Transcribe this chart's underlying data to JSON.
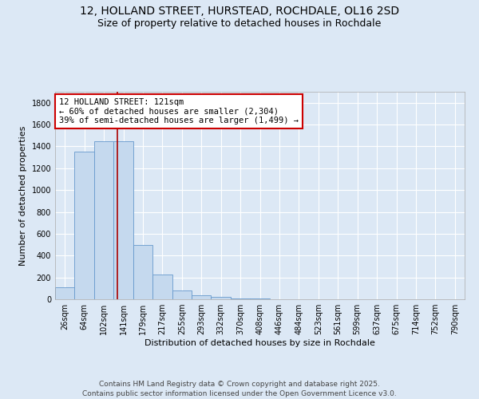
{
  "title_line1": "12, HOLLAND STREET, HURSTEAD, ROCHDALE, OL16 2SD",
  "title_line2": "Size of property relative to detached houses in Rochdale",
  "xlabel": "Distribution of detached houses by size in Rochdale",
  "ylabel": "Number of detached properties",
  "categories": [
    "26sqm",
    "64sqm",
    "102sqm",
    "141sqm",
    "179sqm",
    "217sqm",
    "255sqm",
    "293sqm",
    "332sqm",
    "370sqm",
    "408sqm",
    "446sqm",
    "484sqm",
    "523sqm",
    "561sqm",
    "599sqm",
    "637sqm",
    "675sqm",
    "714sqm",
    "752sqm",
    "790sqm"
  ],
  "values": [
    110,
    1355,
    1450,
    1450,
    500,
    225,
    80,
    40,
    20,
    8,
    4,
    2,
    1,
    0,
    0,
    0,
    0,
    0,
    0,
    0,
    0
  ],
  "bar_color": "#c5d9ee",
  "bar_edge_color": "#6699cc",
  "red_line_x": 2.7,
  "annotation_text": "12 HOLLAND STREET: 121sqm\n← 60% of detached houses are smaller (2,304)\n39% of semi-detached houses are larger (1,499) →",
  "annotation_box_color": "#ffffff",
  "annotation_box_edge_color": "#cc0000",
  "red_line_color": "#aa0000",
  "ylim": [
    0,
    1900
  ],
  "yticks": [
    0,
    200,
    400,
    600,
    800,
    1000,
    1200,
    1400,
    1600,
    1800
  ],
  "background_color": "#dce8f5",
  "plot_bg_color": "#dce8f5",
  "grid_color": "#ffffff",
  "footer_line1": "Contains HM Land Registry data © Crown copyright and database right 2025.",
  "footer_line2": "Contains public sector information licensed under the Open Government Licence v3.0.",
  "title_fontsize": 10,
  "axis_label_fontsize": 8,
  "tick_fontsize": 7,
  "annotation_fontsize": 7.5,
  "footer_fontsize": 6.5
}
